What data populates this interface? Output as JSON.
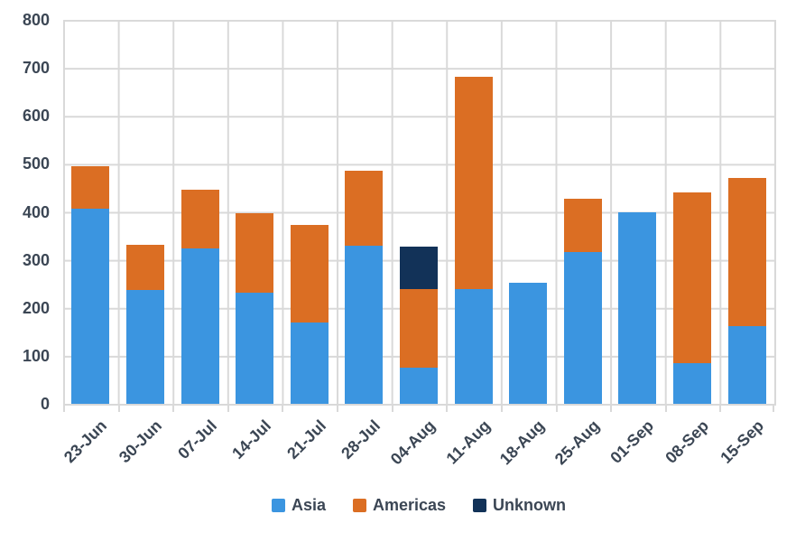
{
  "chart_data": {
    "type": "bar",
    "stacked": true,
    "title": "",
    "xlabel": "",
    "ylabel": "",
    "categories": [
      "23-Jun",
      "30-Jun",
      "07-Jul",
      "14-Jul",
      "21-Jul",
      "28-Jul",
      "04-Aug",
      "11-Aug",
      "18-Aug",
      "25-Aug",
      "01-Sep",
      "08-Sep",
      "15-Sep"
    ],
    "series": [
      {
        "name": "Asia",
        "color": "#3b95e0",
        "values": [
          406,
          238,
          323,
          232,
          169,
          329,
          76,
          240,
          252,
          316,
          400,
          84,
          161
        ]
      },
      {
        "name": "Americas",
        "color": "#db6e23",
        "values": [
          89,
          93,
          123,
          166,
          203,
          157,
          164,
          442,
          0,
          112,
          0,
          357,
          309
        ]
      },
      {
        "name": "Unknown",
        "color": "#123258",
        "values": [
          0,
          0,
          0,
          0,
          0,
          0,
          87,
          0,
          0,
          0,
          0,
          0,
          0
        ]
      }
    ],
    "stack_totals": [
      495,
      331,
      446,
      398,
      372,
      486,
      327,
      682,
      252,
      428,
      400,
      441,
      470
    ],
    "ylim": [
      0,
      800
    ],
    "ytick_step": 100,
    "ytick_labels": [
      "0",
      "100",
      "200",
      "300",
      "400",
      "500",
      "600",
      "700",
      "800"
    ],
    "grid": true,
    "legend_position": "bottom",
    "x_label_rotation_deg": -45
  },
  "colors": {
    "background": "#ffffff",
    "grid": "#d9d9d9",
    "text": "#3b4654",
    "asia": "#3b95e0",
    "americas": "#db6e23",
    "unknown": "#123258"
  }
}
